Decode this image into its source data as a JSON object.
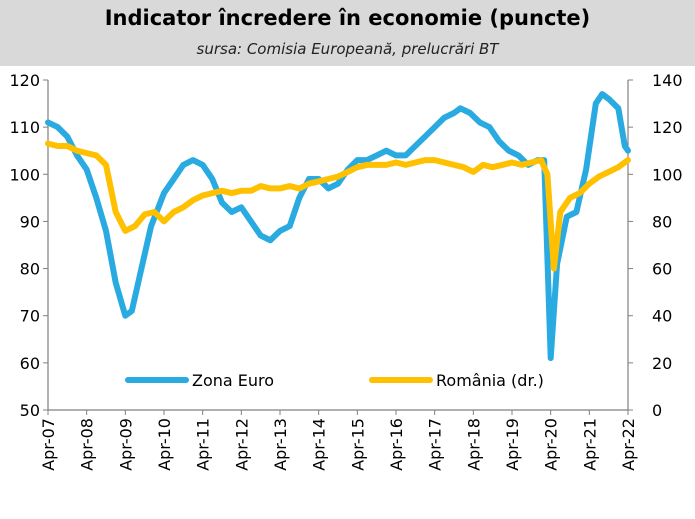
{
  "header": {
    "title": "Indicator încredere în economie (puncte)",
    "subtitle": "sursa: Comisia Europeană, prelucrări BT"
  },
  "chart_data": {
    "type": "line",
    "title": "Indicator încredere în economie (puncte)",
    "subtitle": "sursa: Comisia Europeană, prelucrări BT",
    "x_tick_labels": [
      "Apr-07",
      "Apr-08",
      "Apr-09",
      "Apr-10",
      "Apr-11",
      "Apr-12",
      "Apr-13",
      "Apr-14",
      "Apr-15",
      "Apr-16",
      "Apr-17",
      "Apr-18",
      "Apr-19",
      "Apr-20",
      "Apr-21",
      "Apr-22"
    ],
    "x_range": [
      "2007-04",
      "2022-04"
    ],
    "ylim_left": [
      50,
      120
    ],
    "yticks_left": [
      50,
      60,
      70,
      80,
      90,
      100,
      110,
      120
    ],
    "ylim_right": [
      0,
      140
    ],
    "yticks_right": [
      0,
      20,
      40,
      60,
      80,
      100,
      120,
      140
    ],
    "grid": false,
    "legend_position": "bottom inside",
    "series": [
      {
        "name": "Zona Euro",
        "axis": "left",
        "color": "#29abe2",
        "points": [
          [
            "2007-04",
            111
          ],
          [
            "2007-07",
            110
          ],
          [
            "2007-10",
            108
          ],
          [
            "2008-01",
            104
          ],
          [
            "2008-04",
            101
          ],
          [
            "2008-07",
            95
          ],
          [
            "2008-10",
            88
          ],
          [
            "2009-01",
            77
          ],
          [
            "2009-04",
            70
          ],
          [
            "2009-06",
            71
          ],
          [
            "2009-09",
            80
          ],
          [
            "2009-12",
            89
          ],
          [
            "2010-04",
            96
          ],
          [
            "2010-07",
            99
          ],
          [
            "2010-10",
            102
          ],
          [
            "2011-01",
            103
          ],
          [
            "2011-04",
            102
          ],
          [
            "2011-07",
            99
          ],
          [
            "2011-10",
            94
          ],
          [
            "2012-01",
            92
          ],
          [
            "2012-04",
            93
          ],
          [
            "2012-07",
            90
          ],
          [
            "2012-10",
            87
          ],
          [
            "2013-01",
            86
          ],
          [
            "2013-04",
            88
          ],
          [
            "2013-07",
            89
          ],
          [
            "2013-10",
            95
          ],
          [
            "2014-01",
            99
          ],
          [
            "2014-04",
            99
          ],
          [
            "2014-07",
            97
          ],
          [
            "2014-10",
            98
          ],
          [
            "2015-01",
            101
          ],
          [
            "2015-04",
            103
          ],
          [
            "2015-07",
            103
          ],
          [
            "2015-10",
            104
          ],
          [
            "2016-01",
            105
          ],
          [
            "2016-04",
            104
          ],
          [
            "2016-07",
            104
          ],
          [
            "2016-10",
            106
          ],
          [
            "2017-01",
            108
          ],
          [
            "2017-04",
            110
          ],
          [
            "2017-07",
            112
          ],
          [
            "2017-10",
            113
          ],
          [
            "2017-12",
            114
          ],
          [
            "2018-03",
            113
          ],
          [
            "2018-06",
            111
          ],
          [
            "2018-09",
            110
          ],
          [
            "2018-12",
            107
          ],
          [
            "2019-03",
            105
          ],
          [
            "2019-06",
            104
          ],
          [
            "2019-09",
            102
          ],
          [
            "2019-12",
            103
          ],
          [
            "2020-02",
            103
          ],
          [
            "2020-04",
            61
          ],
          [
            "2020-06",
            81
          ],
          [
            "2020-09",
            91
          ],
          [
            "2020-12",
            92
          ],
          [
            "2021-03",
            101
          ],
          [
            "2021-06",
            115
          ],
          [
            "2021-08",
            117
          ],
          [
            "2021-10",
            116
          ],
          [
            "2022-01",
            114
          ],
          [
            "2022-03",
            106
          ],
          [
            "2022-04",
            105
          ]
        ]
      },
      {
        "name": "România (dr.)",
        "axis": "right",
        "color": "#ffc000",
        "points": [
          [
            "2007-04",
            113
          ],
          [
            "2007-07",
            112
          ],
          [
            "2007-10",
            112
          ],
          [
            "2008-01",
            110
          ],
          [
            "2008-04",
            109
          ],
          [
            "2008-07",
            108
          ],
          [
            "2008-10",
            104
          ],
          [
            "2009-01",
            84
          ],
          [
            "2009-04",
            76
          ],
          [
            "2009-07",
            78
          ],
          [
            "2009-10",
            83
          ],
          [
            "2010-01",
            84
          ],
          [
            "2010-04",
            80
          ],
          [
            "2010-07",
            84
          ],
          [
            "2010-10",
            86
          ],
          [
            "2011-01",
            89
          ],
          [
            "2011-04",
            91
          ],
          [
            "2011-07",
            92
          ],
          [
            "2011-10",
            93
          ],
          [
            "2012-01",
            92
          ],
          [
            "2012-04",
            93
          ],
          [
            "2012-07",
            93
          ],
          [
            "2012-10",
            95
          ],
          [
            "2013-01",
            94
          ],
          [
            "2013-04",
            94
          ],
          [
            "2013-07",
            95
          ],
          [
            "2013-10",
            94
          ],
          [
            "2014-01",
            96
          ],
          [
            "2014-04",
            97
          ],
          [
            "2014-07",
            98
          ],
          [
            "2014-10",
            99
          ],
          [
            "2015-01",
            101
          ],
          [
            "2015-04",
            103
          ],
          [
            "2015-07",
            104
          ],
          [
            "2015-10",
            104
          ],
          [
            "2016-01",
            104
          ],
          [
            "2016-04",
            105
          ],
          [
            "2016-07",
            104
          ],
          [
            "2016-10",
            105
          ],
          [
            "2017-01",
            106
          ],
          [
            "2017-04",
            106
          ],
          [
            "2017-07",
            105
          ],
          [
            "2017-10",
            104
          ],
          [
            "2018-01",
            103
          ],
          [
            "2018-04",
            101
          ],
          [
            "2018-07",
            104
          ],
          [
            "2018-10",
            103
          ],
          [
            "2019-01",
            104
          ],
          [
            "2019-04",
            105
          ],
          [
            "2019-07",
            104
          ],
          [
            "2019-10",
            105
          ],
          [
            "2020-01",
            106
          ],
          [
            "2020-03",
            100
          ],
          [
            "2020-05",
            60
          ],
          [
            "2020-07",
            84
          ],
          [
            "2020-10",
            90
          ],
          [
            "2021-01",
            92
          ],
          [
            "2021-04",
            96
          ],
          [
            "2021-07",
            99
          ],
          [
            "2021-10",
            101
          ],
          [
            "2022-01",
            103
          ],
          [
            "2022-04",
            106
          ]
        ]
      }
    ]
  }
}
